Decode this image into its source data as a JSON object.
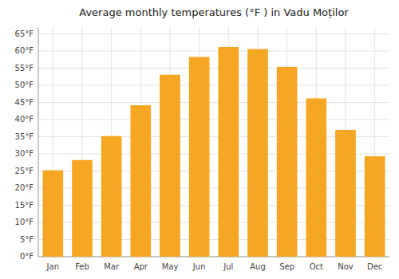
{
  "chart_data": {
    "type": "bar",
    "title": "Average monthly temperatures (°F ) in Vadu Moților",
    "categories": [
      "Jan",
      "Feb",
      "Mar",
      "Apr",
      "May",
      "Jun",
      "Jul",
      "Aug",
      "Sep",
      "Oct",
      "Nov",
      "Dec"
    ],
    "values": [
      25.2,
      28.2,
      35.2,
      44.2,
      53.1,
      58.3,
      61.2,
      60.6,
      55.4,
      46.2,
      37.0,
      29.3
    ],
    "color": "#F5A623",
    "ylim": [
      0,
      67
    ],
    "yticks": [
      {
        "value": 0,
        "label": "0°F"
      },
      {
        "value": 5,
        "label": "5°F"
      },
      {
        "value": 10,
        "label": "10°F"
      },
      {
        "value": 15,
        "label": "15°F"
      },
      {
        "value": 20,
        "label": "20°F"
      },
      {
        "value": 25,
        "label": "25°F"
      },
      {
        "value": 30,
        "label": "30°F"
      },
      {
        "value": 35,
        "label": "35°F"
      },
      {
        "value": 40,
        "label": "40°F"
      },
      {
        "value": 45,
        "label": "45°F"
      },
      {
        "value": 50,
        "label": "50°F"
      },
      {
        "value": 55,
        "label": "55°F"
      },
      {
        "value": 60,
        "label": "60°F"
      },
      {
        "value": 65,
        "label": "65°F"
      }
    ],
    "grid": true
  }
}
